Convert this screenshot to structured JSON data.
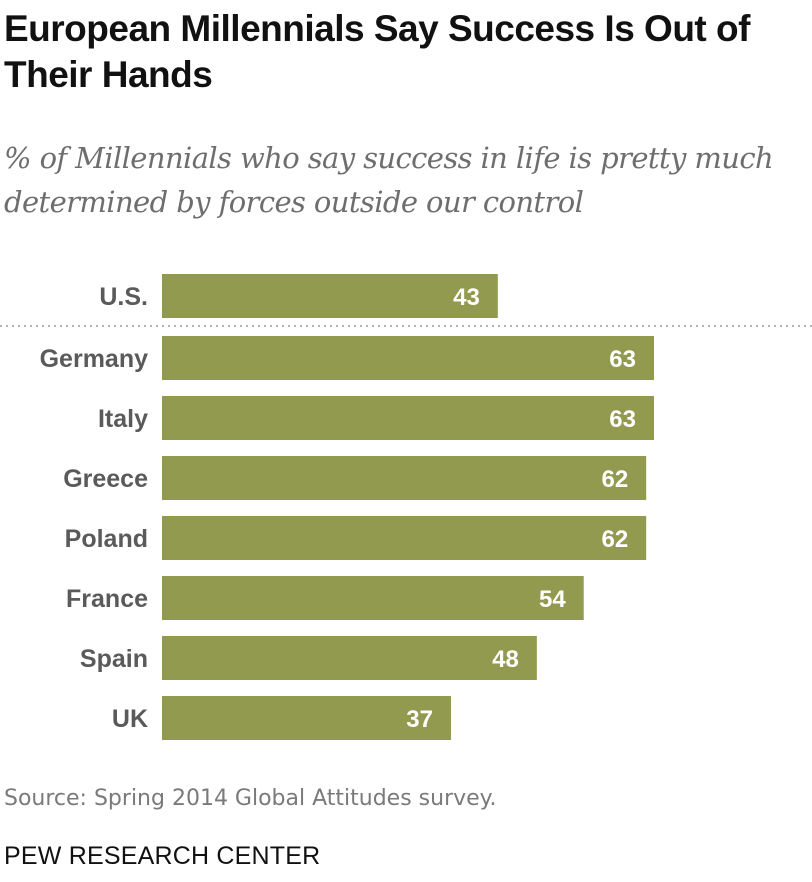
{
  "chart_data": {
    "type": "bar",
    "orientation": "horizontal",
    "title": "European Millennials Say Success Is Out of Their Hands",
    "subtitle": "% of Millennials who say success in life is pretty much determined by forces outside our control",
    "categories": [
      "U.S.",
      "Germany",
      "Italy",
      "Greece",
      "Poland",
      "France",
      "Spain",
      "UK"
    ],
    "values": [
      43,
      63,
      63,
      62,
      62,
      54,
      48,
      37
    ],
    "xlabel": "",
    "ylabel": "",
    "xlim": [
      0,
      63
    ],
    "grid": false,
    "separator_after_index": 0,
    "bar_color": "#929a4f"
  },
  "source": "Source: Spring 2014 Global Attitudes survey.",
  "brand": "PEW RESEARCH CENTER"
}
